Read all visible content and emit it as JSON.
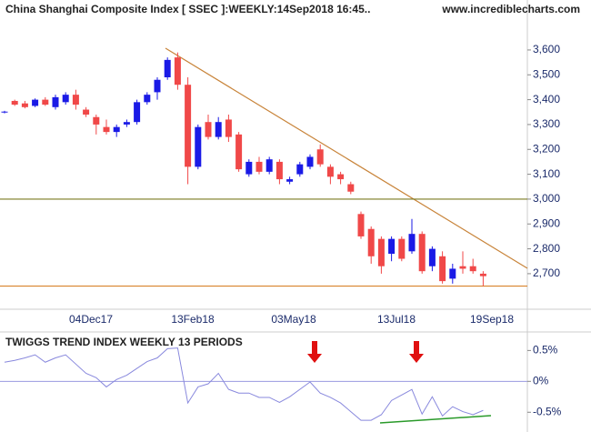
{
  "chart_data": [
    {
      "type": "candlestick",
      "title": "China Shanghai Composite Index [ SSEC ]:WEEKLY:14Sep2018 16:45..",
      "source": "www.incrediblecharts.com",
      "open": [
        3350,
        3395,
        3385,
        3375,
        3400,
        3370,
        3390,
        3420,
        3360,
        3330,
        3290,
        3270,
        3300,
        3310,
        3390,
        3430,
        3490,
        3570,
        3460,
        3130,
        3310,
        3250,
        3320,
        3260,
        3100,
        3150,
        3110,
        3150,
        3070,
        3100,
        3130,
        3200,
        3130,
        3100,
        3060,
        2940,
        2880,
        2840,
        2780,
        2840,
        2790,
        2860,
        2730,
        2770,
        2680,
        2730,
        2730,
        2700
      ],
      "high": [
        3355,
        3400,
        3395,
        3405,
        3410,
        3420,
        3430,
        3440,
        3370,
        3340,
        3320,
        3300,
        3320,
        3400,
        3430,
        3490,
        3570,
        3590,
        3490,
        3300,
        3340,
        3330,
        3340,
        3270,
        3160,
        3170,
        3170,
        3160,
        3090,
        3150,
        3180,
        3220,
        3140,
        3110,
        3070,
        2950,
        2890,
        2850,
        2850,
        2850,
        2920,
        2870,
        2810,
        2790,
        2740,
        2790,
        2760,
        2710
      ],
      "low": [
        3345,
        3375,
        3365,
        3370,
        3375,
        3360,
        3380,
        3360,
        3330,
        3260,
        3260,
        3250,
        3290,
        3300,
        3380,
        3400,
        3480,
        3440,
        3060,
        3120,
        3240,
        3240,
        3230,
        3110,
        3090,
        3100,
        3100,
        3060,
        3060,
        3090,
        3120,
        3130,
        3060,
        3060,
        3020,
        2840,
        2740,
        2700,
        2750,
        2750,
        2780,
        2700,
        2710,
        2660,
        2660,
        2700,
        2700,
        2650
      ],
      "close": [
        3352,
        3380,
        3370,
        3400,
        3380,
        3410,
        3420,
        3380,
        3340,
        3300,
        3270,
        3290,
        3310,
        3390,
        3420,
        3480,
        3560,
        3460,
        3130,
        3290,
        3250,
        3310,
        3250,
        3120,
        3150,
        3110,
        3160,
        3080,
        3080,
        3140,
        3170,
        3140,
        3090,
        3080,
        3030,
        2850,
        2770,
        2730,
        2840,
        2760,
        2860,
        2710,
        2800,
        2670,
        2720,
        2720,
        2710,
        2690
      ],
      "up_color": "#1a1ae6",
      "down_color": "#f04848",
      "hlines": [
        {
          "value": 3000,
          "color": "#7a7a20"
        },
        {
          "value": 2650,
          "color": "#d9822b"
        }
      ],
      "x_labels": [
        "04Dec17",
        "13Feb18",
        "03May18",
        "13Jul18",
        "19Sep18"
      ],
      "ylim": [
        2557,
        3801
      ],
      "yticks": [
        {
          "value": 2700,
          "label": "2,700"
        },
        {
          "value": 2800,
          "label": "2,800"
        },
        {
          "value": 2900,
          "label": "2,900"
        },
        {
          "value": 3000,
          "label": "3,000"
        },
        {
          "value": 3100,
          "label": "3,100"
        },
        {
          "value": 3200,
          "label": "3,200"
        },
        {
          "value": 3300,
          "label": "3,300"
        },
        {
          "value": 3400,
          "label": "3,400"
        },
        {
          "value": 3500,
          "label": "3,500"
        },
        {
          "value": 3600,
          "label": "3,600"
        }
      ]
    },
    {
      "type": "line",
      "title": "TWIGGS TREND INDEX WEEKLY 13 PERIODS",
      "color": "#8888dd",
      "values": [
        0.31,
        0.34,
        0.38,
        0.43,
        0.31,
        0.38,
        0.43,
        0.28,
        0.13,
        0.06,
        -0.09,
        0.03,
        0.1,
        0.21,
        0.32,
        0.38,
        0.53,
        0.54,
        -0.35,
        -0.09,
        -0.04,
        0.13,
        -0.13,
        -0.19,
        -0.19,
        -0.26,
        -0.26,
        -0.34,
        -0.25,
        -0.13,
        -0.01,
        -0.19,
        -0.26,
        -0.35,
        -0.49,
        -0.63,
        -0.63,
        -0.54,
        -0.31,
        -0.22,
        -0.13,
        -0.53,
        -0.25,
        -0.56,
        -0.41,
        -0.49,
        -0.54,
        -0.47
      ],
      "ylim": [
        -0.82,
        0.8
      ],
      "yticks": [
        {
          "value": 0.5,
          "label": "0.5%"
        },
        {
          "value": 0,
          "label": "0%"
        },
        {
          "value": -0.5,
          "label": "-0.5%"
        }
      ]
    }
  ]
}
